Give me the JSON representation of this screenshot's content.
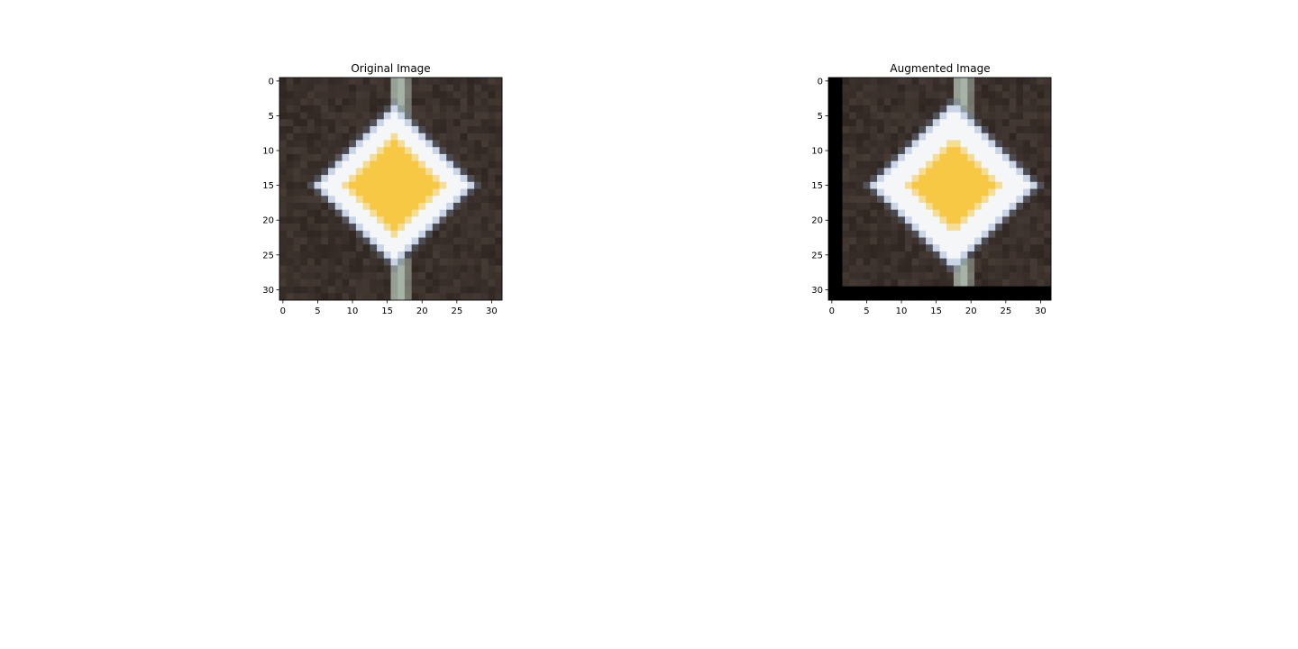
{
  "figure": {
    "panels": [
      {
        "id": "original",
        "title": "Original Image",
        "x_ticks": [
          "0",
          "5",
          "10",
          "15",
          "20",
          "25",
          "30"
        ],
        "y_ticks": [
          "0",
          "5",
          "10",
          "15",
          "20",
          "25",
          "30"
        ],
        "image": {
          "grid": 32,
          "background_color": "#3a302b",
          "sign_border_color": "#f4f6f8",
          "sign_center_color": "#f6c844",
          "pole_color": "#a7b3a6",
          "diamond_center": [
            16.5,
            15.5
          ],
          "outer_half_diagonal": 11.5,
          "inner_half_diagonal": 7.0,
          "pole_columns": [
            16,
            17,
            18
          ],
          "padding_color": null
        }
      },
      {
        "id": "augmented",
        "title": "Augmented Image",
        "x_ticks": [
          "0",
          "5",
          "10",
          "15",
          "20",
          "25",
          "30"
        ],
        "y_ticks": [
          "0",
          "5",
          "10",
          "15",
          "20",
          "25",
          "30"
        ],
        "image": {
          "grid": 32,
          "background_color": "#3a302b",
          "sign_border_color": "#f4f6f8",
          "sign_center_color": "#f6c844",
          "pole_color": "#a7b3a6",
          "diamond_center": [
            18.0,
            15.5
          ],
          "outer_half_diagonal": 12.0,
          "inner_half_diagonal": 7.0,
          "pole_columns": [
            18,
            19,
            20
          ],
          "padding_color": "#000000",
          "black_left_columns": 2,
          "black_bottom_rows": 2
        }
      }
    ]
  }
}
